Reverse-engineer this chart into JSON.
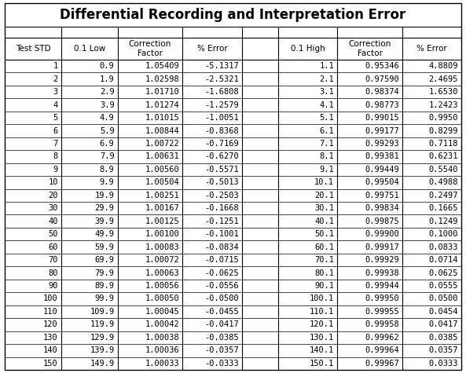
{
  "title": "Differential Recording and Interpretation Error",
  "rows": [
    [
      "1",
      "0.9",
      "1.05409",
      "-5.1317",
      "1.1",
      "0.95346",
      "4.8809"
    ],
    [
      "2",
      "1.9",
      "1.02598",
      "-2.5321",
      "2.1",
      "0.97590",
      "2.4695"
    ],
    [
      "3",
      "2.9",
      "1.01710",
      "-1.6808",
      "3.1",
      "0.98374",
      "1.6530"
    ],
    [
      "4",
      "3.9",
      "1.01274",
      "-1.2579",
      "4.1",
      "0.98773",
      "1.2423"
    ],
    [
      "5",
      "4.9",
      "1.01015",
      "-1.0051",
      "5.1",
      "0.99015",
      "0.9950"
    ],
    [
      "6",
      "5.9",
      "1.00844",
      "-0.8368",
      "6.1",
      "0.99177",
      "0.8299"
    ],
    [
      "7",
      "6.9",
      "1.00722",
      "-0.7169",
      "7.1",
      "0.99293",
      "0.7118"
    ],
    [
      "8",
      "7.9",
      "1.00631",
      "-0.6270",
      "8.1",
      "0.99381",
      "0.6231"
    ],
    [
      "9",
      "8.9",
      "1.00560",
      "-0.5571",
      "9.1",
      "0.99449",
      "0.5540"
    ],
    [
      "10",
      "9.9",
      "1.00504",
      "-0.5013",
      "10.1",
      "0.99504",
      "0.4988"
    ],
    [
      "20",
      "19.9",
      "1.00251",
      "-0.2503",
      "20.1",
      "0.99751",
      "0.2497"
    ],
    [
      "30",
      "29.9",
      "1.00167",
      "-0.1668",
      "30.1",
      "0.99834",
      "0.1665"
    ],
    [
      "40",
      "39.9",
      "1.00125",
      "-0.1251",
      "40.1",
      "0.99875",
      "0.1249"
    ],
    [
      "50",
      "49.9",
      "1.00100",
      "-0.1001",
      "50.1",
      "0.99900",
      "0.1000"
    ],
    [
      "60",
      "59.9",
      "1.00083",
      "-0.0834",
      "60.1",
      "0.99917",
      "0.0833"
    ],
    [
      "70",
      "69.9",
      "1.00072",
      "-0.0715",
      "70.1",
      "0.99929",
      "0.0714"
    ],
    [
      "80",
      "79.9",
      "1.00063",
      "-0.0625",
      "80.1",
      "0.99938",
      "0.0625"
    ],
    [
      "90",
      "89.9",
      "1.00056",
      "-0.0556",
      "90.1",
      "0.99944",
      "0.0555"
    ],
    [
      "100",
      "99.9",
      "1.00050",
      "-0.0500",
      "100.1",
      "0.99950",
      "0.0500"
    ],
    [
      "110",
      "109.9",
      "1.00045",
      "-0.0455",
      "110.1",
      "0.99955",
      "0.0454"
    ],
    [
      "120",
      "119.9",
      "1.00042",
      "-0.0417",
      "120.1",
      "0.99958",
      "0.0417"
    ],
    [
      "130",
      "129.9",
      "1.00038",
      "-0.0385",
      "130.1",
      "0.99962",
      "0.0385"
    ],
    [
      "140",
      "139.9",
      "1.00036",
      "-0.0357",
      "140.1",
      "0.99964",
      "0.0357"
    ],
    [
      "150",
      "149.9",
      "1.00033",
      "-0.0333",
      "150.1",
      "0.99967",
      "0.0333"
    ]
  ],
  "title_fontsize": 12,
  "cell_fontsize": 7.5,
  "header_fontsize": 7.5
}
